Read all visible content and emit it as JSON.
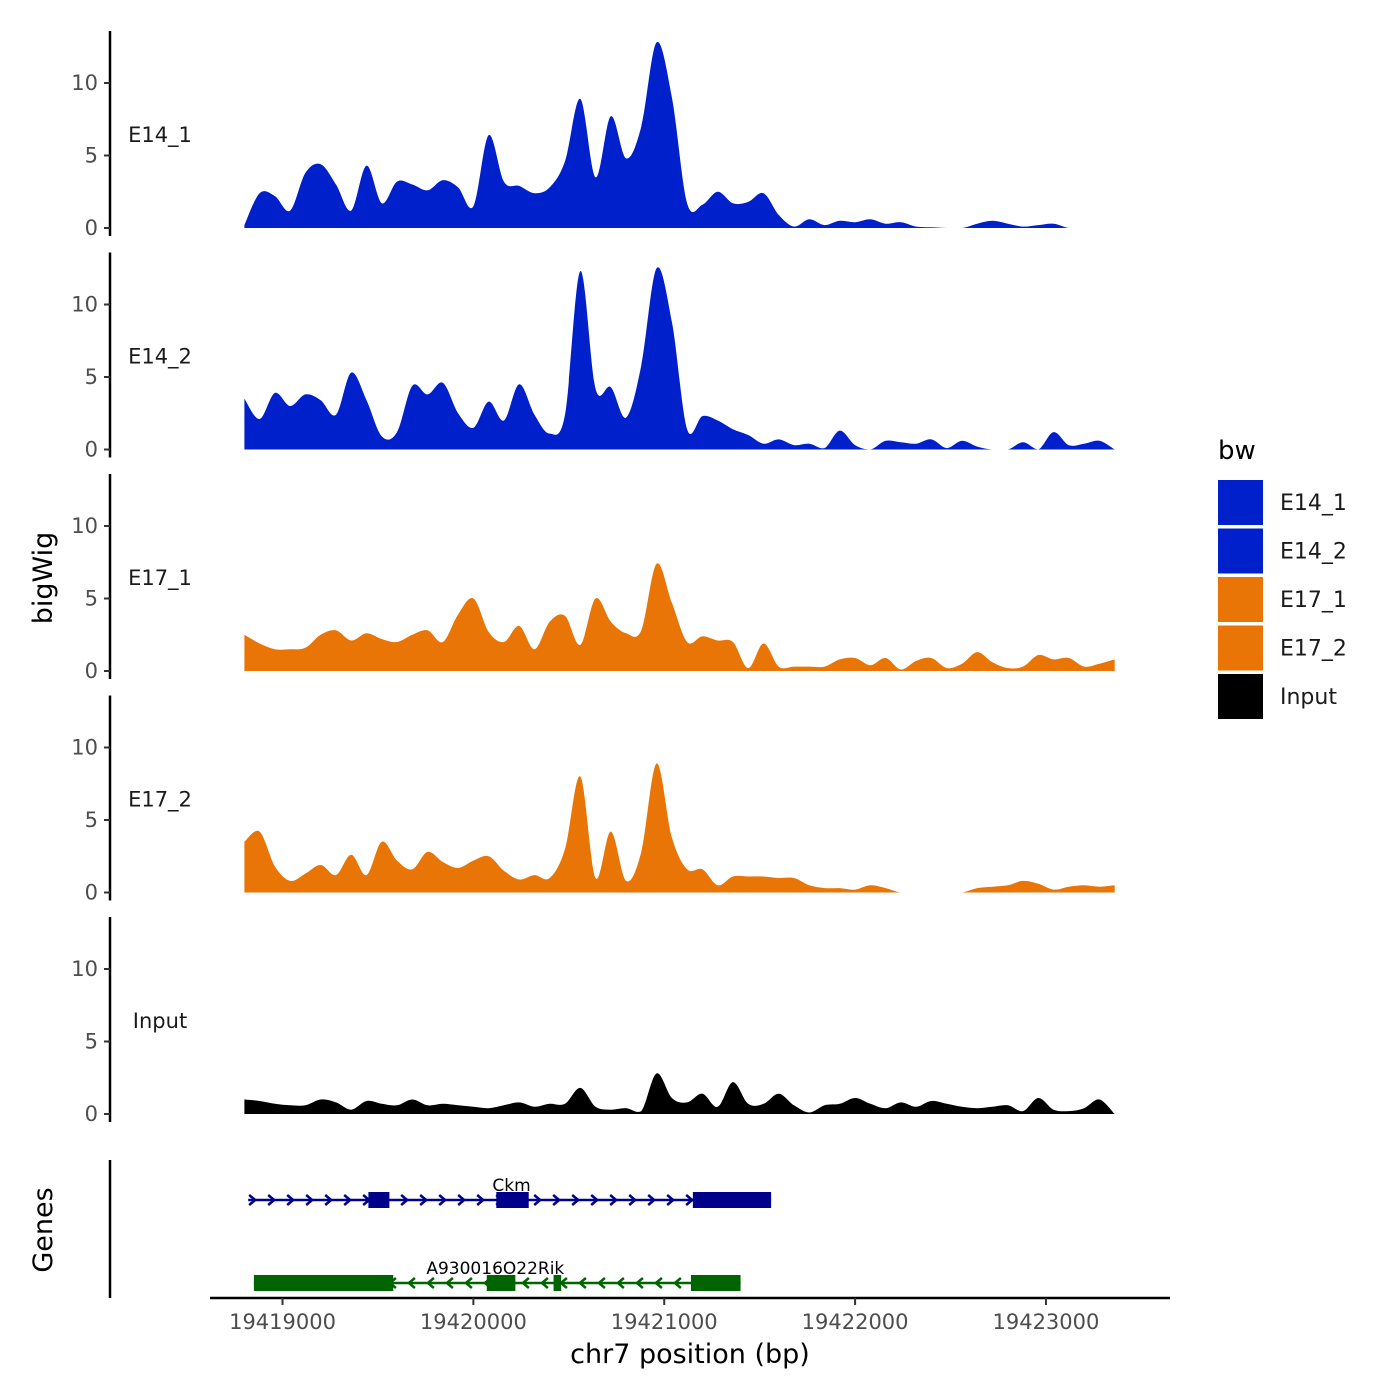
{
  "chart_data": {
    "type": "area",
    "title": "",
    "ylabel": "bigWig",
    "xlabel": "chr7 position (bp)",
    "xlim": [
      19418620,
      19423650
    ],
    "x_ticks": [
      {
        "value": 19419000,
        "label": "19419000"
      },
      {
        "value": 19420000,
        "label": "19420000"
      },
      {
        "value": 19421000,
        "label": "19421000"
      },
      {
        "value": 19422000,
        "label": "19422000"
      },
      {
        "value": 19423000,
        "label": "19423000"
      }
    ],
    "ylim": [
      0,
      14
    ],
    "y_ticks": [
      {
        "value": 0,
        "label": "0"
      },
      {
        "value": 5,
        "label": "5"
      },
      {
        "value": 10,
        "label": "10"
      }
    ],
    "genes_label": "Genes",
    "legend": {
      "title": "bw",
      "entries": [
        {
          "label": "E14_1",
          "color": "#0020CC"
        },
        {
          "label": "E14_2",
          "color": "#0020CC"
        },
        {
          "label": "E17_1",
          "color": "#E87505"
        },
        {
          "label": "E17_2",
          "color": "#E87505"
        },
        {
          "label": "Input",
          "color": "#000000"
        }
      ]
    },
    "x": [
      19418800,
      19418880,
      19418960,
      19419040,
      19419120,
      19419200,
      19419280,
      19419360,
      19419440,
      19419520,
      19419600,
      19419680,
      19419760,
      19419840,
      19419920,
      19420000,
      19420080,
      19420160,
      19420240,
      19420320,
      19420400,
      19420480,
      19420560,
      19420640,
      19420720,
      19420800,
      19420880,
      19420960,
      19421040,
      19421120,
      19421200,
      19421280,
      19421360,
      19421440,
      19421520,
      19421600,
      19421680,
      19421760,
      19421840,
      19421920,
      19422000,
      19422080,
      19422160,
      19422240,
      19422320,
      19422400,
      19422480,
      19422560,
      19422640,
      19422720,
      19422800,
      19422880,
      19422960,
      19423040,
      19423120,
      19423200,
      19423280,
      19423360
    ],
    "series": [
      {
        "name": "E14_1",
        "color": "#0020CC",
        "values": [
          0.2,
          2.4,
          2.2,
          1.2,
          3.8,
          4.4,
          3.0,
          1.2,
          4.3,
          1.7,
          3.2,
          3.0,
          2.6,
          3.3,
          2.8,
          1.5,
          6.4,
          3.2,
          2.9,
          2.4,
          2.8,
          4.6,
          8.9,
          3.5,
          7.7,
          4.8,
          7.0,
          12.8,
          9.0,
          1.7,
          1.6,
          2.5,
          1.7,
          1.8,
          2.4,
          0.9,
          0.1,
          0.6,
          0.2,
          0.5,
          0.4,
          0.6,
          0.3,
          0.4,
          0.1,
          0.05,
          0.0,
          0.0,
          0.3,
          0.5,
          0.3,
          0.1,
          0.2,
          0.3,
          0.0,
          0.0,
          0.0,
          0.0
        ]
      },
      {
        "name": "E14_2",
        "color": "#0020CC",
        "values": [
          3.5,
          2.1,
          3.9,
          3.0,
          3.8,
          3.4,
          2.4,
          5.3,
          3.4,
          0.9,
          1.2,
          4.4,
          3.8,
          4.6,
          2.5,
          1.5,
          3.3,
          2.0,
          4.5,
          2.4,
          1.1,
          2.4,
          12.3,
          4.2,
          4.3,
          2.2,
          5.8,
          12.5,
          8.8,
          1.4,
          2.3,
          2.0,
          1.4,
          1.0,
          0.4,
          0.7,
          0.3,
          0.4,
          0.1,
          1.3,
          0.3,
          0.0,
          0.6,
          0.5,
          0.4,
          0.7,
          0.1,
          0.6,
          0.2,
          0.0,
          0.0,
          0.5,
          0.0,
          1.2,
          0.3,
          0.4,
          0.6,
          0.0
        ]
      },
      {
        "name": "E17_1",
        "color": "#E87505",
        "values": [
          2.5,
          1.9,
          1.5,
          1.5,
          1.6,
          2.5,
          2.8,
          2.1,
          2.6,
          2.2,
          2.0,
          2.5,
          2.8,
          2.0,
          3.9,
          5.0,
          2.7,
          2.0,
          3.1,
          1.5,
          3.4,
          3.8,
          1.8,
          5.0,
          3.4,
          2.6,
          2.8,
          7.4,
          4.7,
          2.0,
          2.4,
          2.1,
          2.0,
          0.2,
          1.9,
          0.3,
          0.3,
          0.3,
          0.3,
          0.8,
          0.9,
          0.4,
          0.9,
          0.1,
          0.7,
          0.9,
          0.2,
          0.5,
          1.3,
          0.6,
          0.2,
          0.3,
          1.1,
          0.8,
          0.9,
          0.3,
          0.5,
          0.8
        ]
      },
      {
        "name": "E17_2",
        "color": "#E87505",
        "values": [
          3.5,
          4.2,
          1.8,
          0.8,
          1.3,
          1.9,
          1.2,
          2.6,
          1.2,
          3.5,
          2.2,
          1.6,
          2.8,
          2.1,
          1.7,
          2.2,
          2.5,
          1.5,
          0.9,
          1.2,
          1.0,
          3.0,
          8.0,
          1.0,
          4.2,
          0.8,
          2.8,
          8.9,
          3.8,
          1.6,
          1.6,
          0.5,
          1.1,
          1.1,
          1.1,
          1.0,
          1.0,
          0.5,
          0.3,
          0.3,
          0.2,
          0.5,
          0.3,
          0.0,
          0.0,
          0.0,
          0.0,
          0.0,
          0.3,
          0.4,
          0.5,
          0.8,
          0.6,
          0.2,
          0.4,
          0.5,
          0.4,
          0.5
        ]
      },
      {
        "name": "Input",
        "color": "#000000",
        "values": [
          1.0,
          0.9,
          0.7,
          0.6,
          0.6,
          1.0,
          0.8,
          0.3,
          0.9,
          0.7,
          0.6,
          1.0,
          0.6,
          0.7,
          0.6,
          0.5,
          0.4,
          0.6,
          0.8,
          0.5,
          0.7,
          0.7,
          1.8,
          0.5,
          0.3,
          0.4,
          0.2,
          2.8,
          1.1,
          0.8,
          1.4,
          0.5,
          2.2,
          0.7,
          0.7,
          1.4,
          0.6,
          0.1,
          0.6,
          0.7,
          1.1,
          0.7,
          0.4,
          0.8,
          0.5,
          0.9,
          0.7,
          0.5,
          0.4,
          0.5,
          0.6,
          0.2,
          1.1,
          0.3,
          0.2,
          0.4,
          1.0,
          0.0
        ]
      }
    ],
    "genes": [
      {
        "name": "Ckm",
        "strand": "+",
        "color": "#00008B",
        "start": 19418820,
        "end": 19421560,
        "exons": [
          [
            19419450,
            19419560
          ],
          [
            19420120,
            19420290
          ],
          [
            19421150,
            19421560
          ]
        ]
      },
      {
        "name": "A930016O22Rik",
        "strand": "-",
        "color": "#006400",
        "start": 19418850,
        "end": 19421400,
        "exons": [
          [
            19418850,
            19419580
          ],
          [
            19420070,
            19420220
          ],
          [
            19420420,
            19420460
          ],
          [
            19421140,
            19421400
          ]
        ]
      }
    ]
  }
}
